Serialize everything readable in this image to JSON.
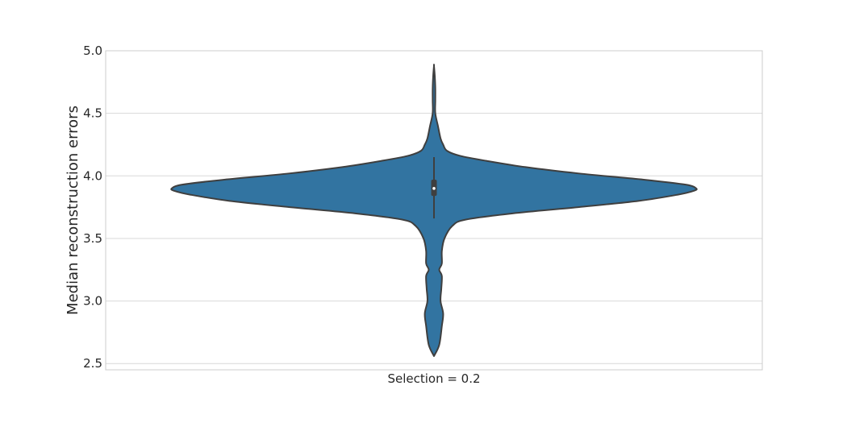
{
  "chart_data": {
    "type": "violin",
    "title": "",
    "xlabel": "",
    "ylabel": "Median reconstruction errors",
    "categories": [
      "Selection = 0.2"
    ],
    "ylim": [
      2.45,
      5.0
    ],
    "yticks": [
      2.5,
      3.0,
      3.5,
      4.0,
      4.5,
      5.0
    ],
    "ytick_labels": [
      "2.5",
      "3.0",
      "3.5",
      "4.0",
      "4.5",
      "5.0"
    ],
    "grid": "horizontal",
    "color": "#3274a1",
    "edge_color": "#3f3f3f",
    "violin": {
      "min": 2.56,
      "max": 4.88,
      "median": 3.9,
      "q1": 3.84,
      "q3": 3.97,
      "whisker_low": 3.66,
      "whisker_high": 4.15,
      "density_profile": [
        [
          2.56,
          0.0
        ],
        [
          2.65,
          0.02
        ],
        [
          2.8,
          0.03
        ],
        [
          2.9,
          0.035
        ],
        [
          3.0,
          0.025
        ],
        [
          3.1,
          0.028
        ],
        [
          3.2,
          0.03
        ],
        [
          3.25,
          0.02
        ],
        [
          3.3,
          0.03
        ],
        [
          3.4,
          0.03
        ],
        [
          3.5,
          0.04
        ],
        [
          3.6,
          0.07
        ],
        [
          3.65,
          0.12
        ],
        [
          3.7,
          0.3
        ],
        [
          3.75,
          0.55
        ],
        [
          3.8,
          0.78
        ],
        [
          3.85,
          0.93
        ],
        [
          3.88,
          0.99
        ],
        [
          3.9,
          1.0
        ],
        [
          3.93,
          0.96
        ],
        [
          3.97,
          0.8
        ],
        [
          4.02,
          0.55
        ],
        [
          4.07,
          0.35
        ],
        [
          4.12,
          0.2
        ],
        [
          4.16,
          0.1
        ],
        [
          4.2,
          0.05
        ],
        [
          4.25,
          0.035
        ],
        [
          4.3,
          0.025
        ],
        [
          4.4,
          0.015
        ],
        [
          4.5,
          0.005
        ],
        [
          4.6,
          0.005
        ],
        [
          4.7,
          0.005
        ],
        [
          4.8,
          0.003
        ],
        [
          4.88,
          0.0
        ]
      ]
    }
  }
}
